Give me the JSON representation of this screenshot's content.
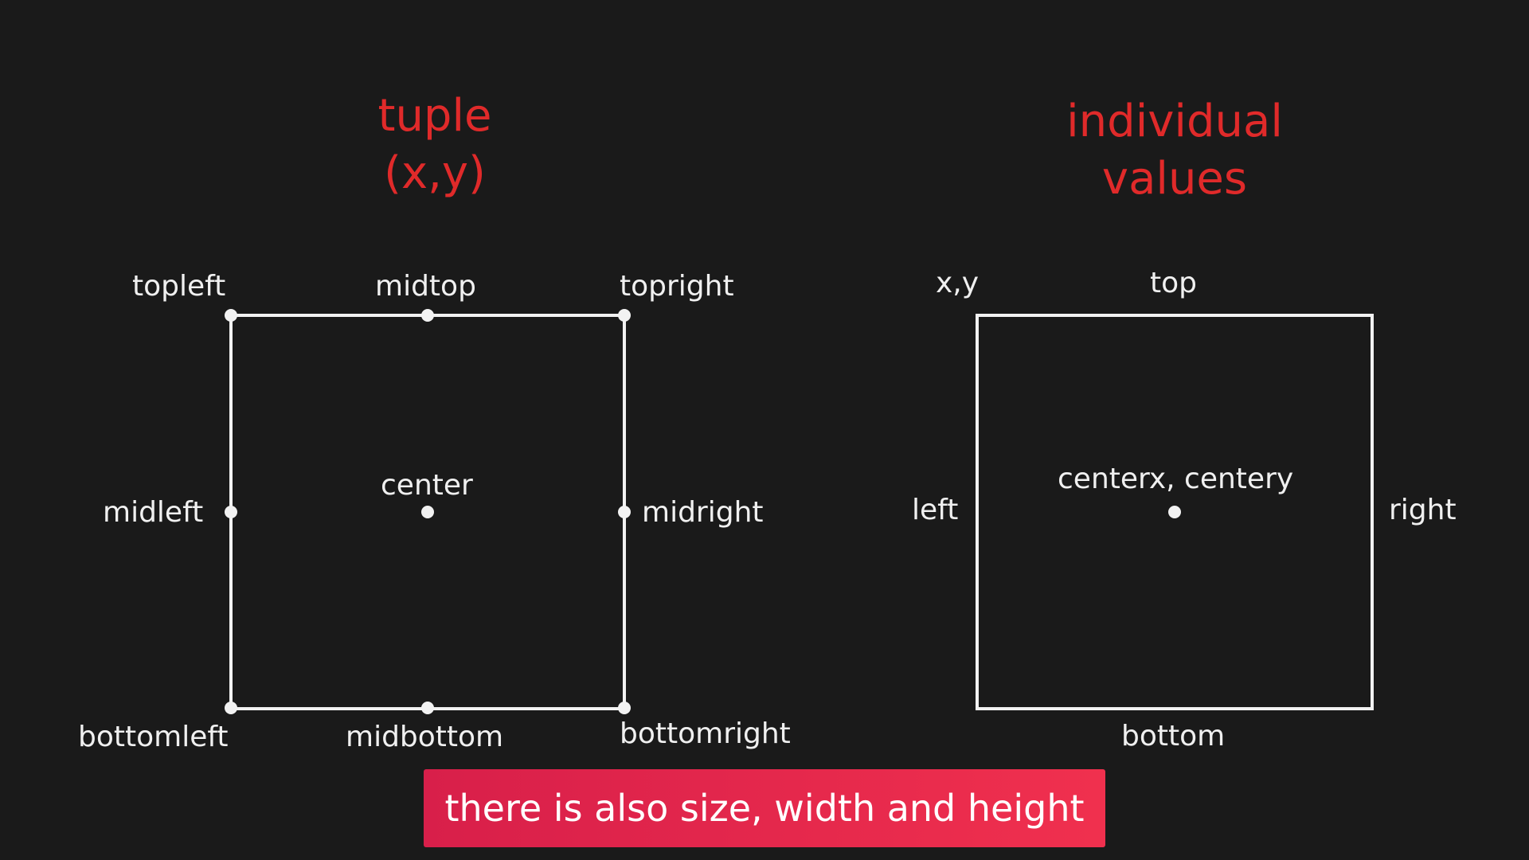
{
  "left_panel": {
    "heading_line1": "tuple",
    "heading_line2": "(x,y)",
    "labels": {
      "topleft": "topleft",
      "midtop": "midtop",
      "topright": "topright",
      "midleft": "midleft",
      "center": "center",
      "midright": "midright",
      "bottomleft": "bottomleft",
      "midbottom": "midbottom",
      "bottomright": "bottomright"
    }
  },
  "right_panel": {
    "heading_line1": "individual",
    "heading_line2": "values",
    "labels": {
      "xy": "x,y",
      "top": "top",
      "left": "left",
      "center": "centerx, centery",
      "right": "right",
      "bottom": "bottom"
    }
  },
  "caption": "there is also size, width and height",
  "colors": {
    "background": "#1a1a1a",
    "heading": "#e02a2a",
    "line": "#f2f2f2",
    "caption_bg": "#e8284c"
  }
}
